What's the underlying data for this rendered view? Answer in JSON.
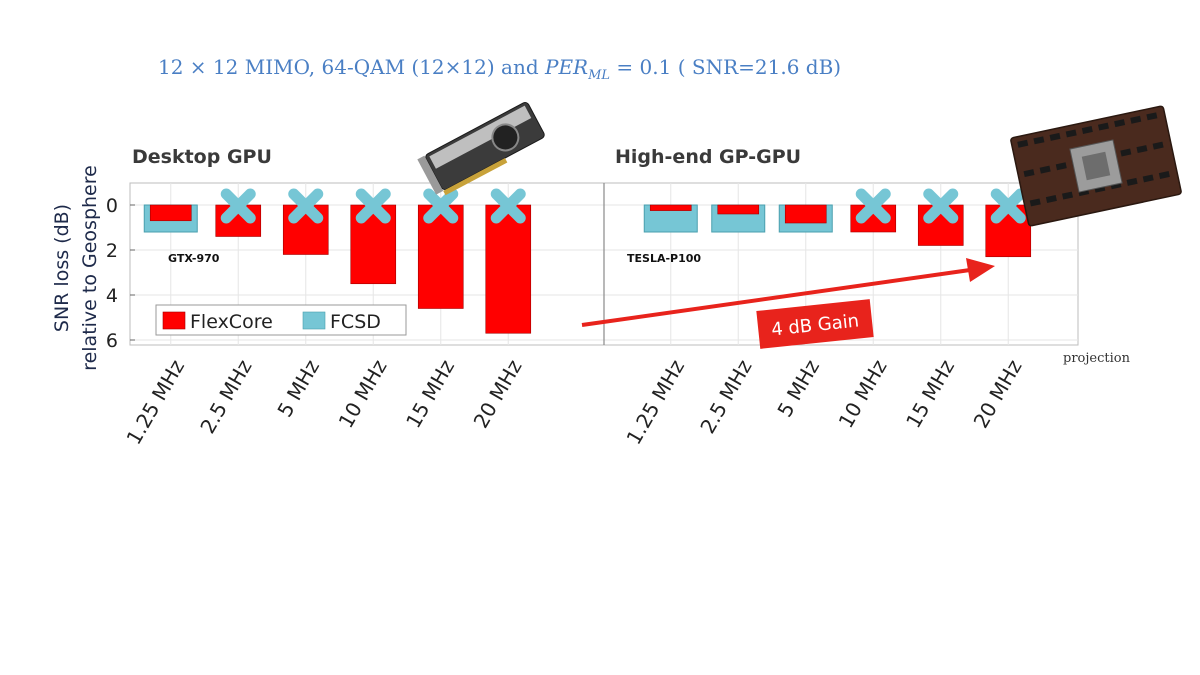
{
  "title": {
    "prefix": "12 × 12 MIMO, 64-QAM (12×12) and ",
    "per": "PER",
    "per_sub": "ML",
    "suffix": " = 0.1 ( SNR=21.6 dB)"
  },
  "annotations": {
    "gain_label": "4 dB Gain",
    "projection_label": "projection"
  },
  "colors": {
    "flexcore": "#ff0000",
    "fcsd": "#76c6d5",
    "arrow": "#e8231c"
  },
  "chart_data": {
    "type": "bar",
    "ylabel": [
      "SNR loss (dB)",
      "relative to Geosphere"
    ],
    "ylim": [
      -1,
      6.2
    ],
    "yticks": [
      0,
      2,
      4,
      6
    ],
    "ytick_labels": [
      "0",
      "2",
      "4",
      "6"
    ],
    "legend": {
      "placement": "bottom-left",
      "entries": [
        "FlexCore",
        "FCSD"
      ]
    },
    "categories": [
      "1.25 MHz",
      "2.5 MHz",
      "5 MHz",
      "10 MHz",
      "15 MHz",
      "20 MHz"
    ],
    "panels": [
      {
        "title": "Desktop GPU",
        "device": "GTX-970",
        "series": [
          {
            "name": "FlexCore",
            "values": [
              0.7,
              1.4,
              2.2,
              3.5,
              4.6,
              5.7
            ]
          },
          {
            "name": "FCSD",
            "values": [
              1.2,
              null,
              null,
              null,
              null,
              null
            ]
          }
        ],
        "infeasible_fcsd": [
          false,
          true,
          true,
          true,
          true,
          true
        ]
      },
      {
        "title": "High-end GP-GPU",
        "device": "TESLA-P100",
        "series": [
          {
            "name": "FlexCore",
            "values": [
              0.25,
              0.4,
              0.8,
              1.2,
              1.8,
              2.3
            ]
          },
          {
            "name": "FCSD",
            "values": [
              1.2,
              1.2,
              1.2,
              null,
              null,
              null
            ]
          }
        ],
        "infeasible_fcsd": [
          false,
          false,
          false,
          true,
          true,
          true
        ]
      }
    ]
  }
}
